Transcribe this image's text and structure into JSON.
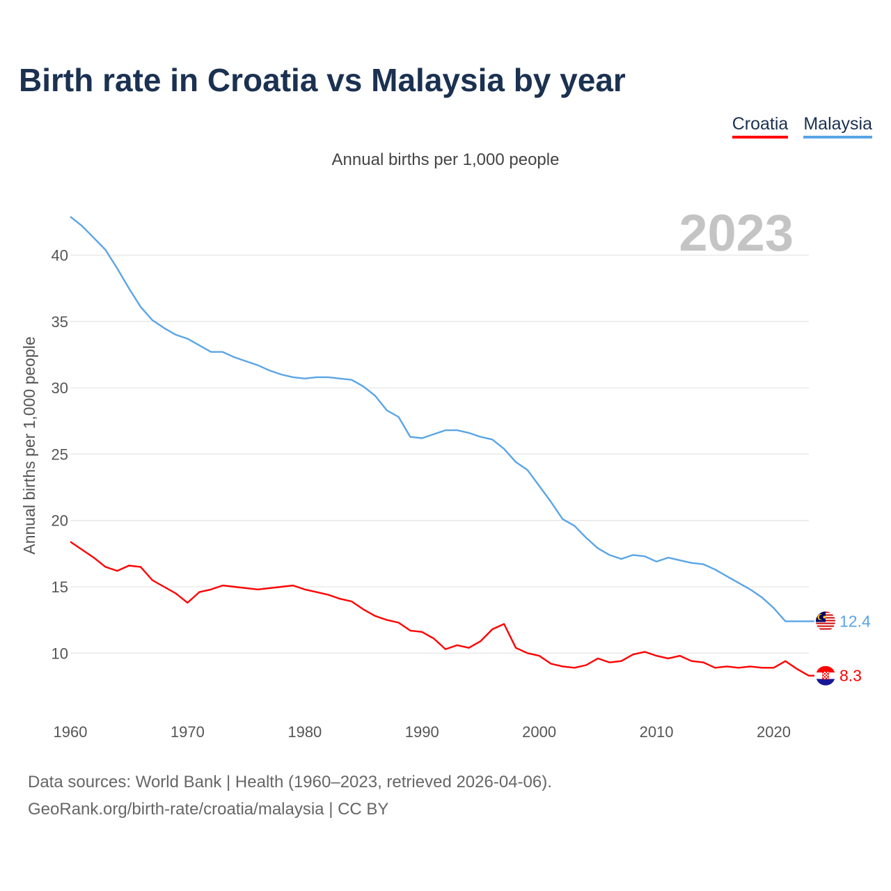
{
  "header": {
    "title": "Birth rate in Croatia vs Malaysia by year",
    "subtitle": "Annual births per 1,000 people"
  },
  "legend": {
    "croatia": "Croatia",
    "malaysia": "Malaysia"
  },
  "colors": {
    "croatia": "#ff0000",
    "malaysia": "#5aa5e6",
    "title": "#1b3151",
    "year_watermark": "#c4c4c4",
    "grid": "#e6e6e6"
  },
  "chart_data": {
    "type": "line",
    "title": "Birth rate in Croatia vs Malaysia by year",
    "subtitle": "Annual births per 1,000 people",
    "ylabel": "Annual births per 1,000 people",
    "xlabel": "",
    "year_label": "2023",
    "xlim": [
      1960,
      2023
    ],
    "ylim": [
      7,
      44
    ],
    "x_ticks": [
      1960,
      1970,
      1980,
      1990,
      2000,
      2010,
      2020
    ],
    "y_ticks": [
      10,
      15,
      20,
      25,
      30,
      35,
      40
    ],
    "grid": true,
    "legend_position": "top-right",
    "x": [
      1960,
      1961,
      1962,
      1963,
      1964,
      1965,
      1966,
      1967,
      1968,
      1969,
      1970,
      1971,
      1972,
      1973,
      1974,
      1975,
      1976,
      1977,
      1978,
      1979,
      1980,
      1981,
      1982,
      1983,
      1984,
      1985,
      1986,
      1987,
      1988,
      1989,
      1990,
      1991,
      1992,
      1993,
      1994,
      1995,
      1996,
      1997,
      1998,
      1999,
      2000,
      2001,
      2002,
      2003,
      2004,
      2005,
      2006,
      2007,
      2008,
      2009,
      2010,
      2011,
      2012,
      2013,
      2014,
      2015,
      2016,
      2017,
      2018,
      2019,
      2020,
      2021,
      2022,
      2023
    ],
    "series": [
      {
        "name": "Croatia",
        "color": "#ff0000",
        "end_label": "8.3",
        "values": [
          18.4,
          17.8,
          17.2,
          16.5,
          16.2,
          16.6,
          16.5,
          15.5,
          15.0,
          14.5,
          13.8,
          14.6,
          14.8,
          15.1,
          15.0,
          14.9,
          14.8,
          14.9,
          15.0,
          15.1,
          14.8,
          14.6,
          14.4,
          14.1,
          13.9,
          13.3,
          12.8,
          12.5,
          12.3,
          11.7,
          11.6,
          11.1,
          10.3,
          10.6,
          10.4,
          10.9,
          11.8,
          12.2,
          10.4,
          10.0,
          9.8,
          9.2,
          9.0,
          8.9,
          9.1,
          9.6,
          9.3,
          9.4,
          9.9,
          10.1,
          9.8,
          9.6,
          9.8,
          9.4,
          9.3,
          8.9,
          9.0,
          8.9,
          9.0,
          8.9,
          8.9,
          9.4,
          8.8,
          8.3
        ]
      },
      {
        "name": "Malaysia",
        "color": "#5aa5e6",
        "end_label": "12.4",
        "values": [
          42.9,
          42.2,
          41.3,
          40.4,
          39.0,
          37.5,
          36.1,
          35.1,
          34.5,
          34.0,
          33.7,
          33.2,
          32.7,
          32.7,
          32.3,
          32.0,
          31.7,
          31.3,
          31.0,
          30.8,
          30.7,
          30.8,
          30.8,
          30.7,
          30.6,
          30.1,
          29.4,
          28.3,
          27.8,
          26.3,
          26.2,
          26.5,
          26.8,
          26.8,
          26.6,
          26.3,
          26.1,
          25.4,
          24.4,
          23.8,
          22.6,
          21.4,
          20.1,
          19.6,
          18.7,
          17.9,
          17.4,
          17.1,
          17.4,
          17.3,
          16.9,
          17.2,
          17.0,
          16.8,
          16.7,
          16.3,
          15.8,
          15.3,
          14.8,
          14.2,
          13.4,
          12.4,
          12.4,
          12.4
        ]
      }
    ]
  },
  "footer": {
    "sources": "Data sources: World Bank | Health (1960–2023, retrieved 2026-04-06).",
    "credit": "GeoRank.org/birth-rate/croatia/malaysia | CC BY"
  }
}
